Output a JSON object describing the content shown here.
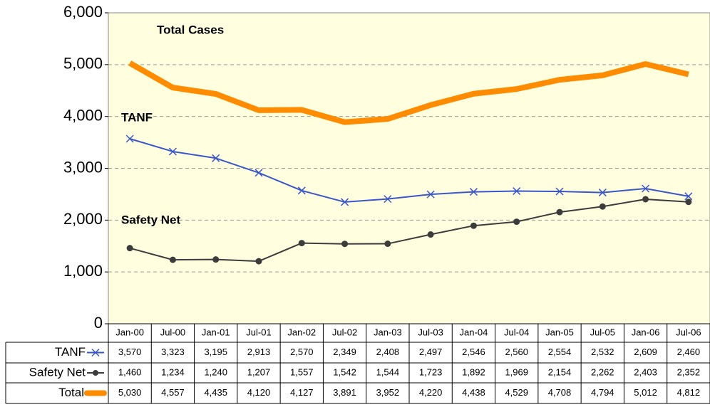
{
  "chart_data": {
    "type": "line",
    "categories": [
      "Jan-00",
      "Jul-00",
      "Jan-01",
      "Jul-01",
      "Jan-02",
      "Jul-02",
      "Jan-03",
      "Jul-03",
      "Jan-04",
      "Jul-04",
      "Jan-05",
      "Jul-05",
      "Jan-06",
      "Jul-06"
    ],
    "series": [
      {
        "name": "TANF",
        "color": "#3a56c8",
        "marker": "x",
        "values": [
          3570,
          3323,
          3195,
          2913,
          2570,
          2349,
          2408,
          2497,
          2546,
          2560,
          2554,
          2532,
          2609,
          2460
        ],
        "value_labels": [
          "3,570",
          "3,323",
          "3,195",
          "2,913",
          "2,570",
          "2,349",
          "2,408",
          "2,497",
          "2,546",
          "2,560",
          "2,554",
          "2,532",
          "2,609",
          "2,460"
        ]
      },
      {
        "name": "Safety Net",
        "color": "#3c3c3c",
        "marker": "circle",
        "values": [
          1460,
          1234,
          1240,
          1207,
          1557,
          1542,
          1544,
          1723,
          1892,
          1969,
          2154,
          2262,
          2403,
          2352
        ],
        "value_labels": [
          "1,460",
          "1,234",
          "1,240",
          "1,207",
          "1,557",
          "1,542",
          "1,544",
          "1,723",
          "1,892",
          "1,969",
          "2,154",
          "2,262",
          "2,403",
          "2,352"
        ]
      },
      {
        "name": "Total",
        "color": "#ff8c00",
        "marker": "none",
        "values": [
          5030,
          4557,
          4435,
          4120,
          4127,
          3891,
          3952,
          4220,
          4438,
          4529,
          4708,
          4794,
          5012,
          4812
        ],
        "value_labels": [
          "5,030",
          "4,557",
          "4,435",
          "4,120",
          "4,127",
          "3,891",
          "3,952",
          "4,220",
          "4,438",
          "4,529",
          "4,708",
          "4,794",
          "5,012",
          "4,812"
        ]
      }
    ],
    "annotations": [
      "Total Cases",
      "TANF",
      "Safety Net"
    ],
    "ylim": [
      0,
      6000
    ],
    "yticks": [
      0,
      {
        "value": 1000,
        "label": "1,000"
      },
      {
        "value": 2000,
        "label": "2,000"
      },
      {
        "value": 3000,
        "label": "3,000"
      },
      {
        "value": 4000,
        "label": "4,000"
      },
      {
        "value": 5000,
        "label": "5,000"
      },
      {
        "value": 6000,
        "label": "6,000"
      }
    ],
    "grid": true,
    "background": "#ffffe0"
  }
}
